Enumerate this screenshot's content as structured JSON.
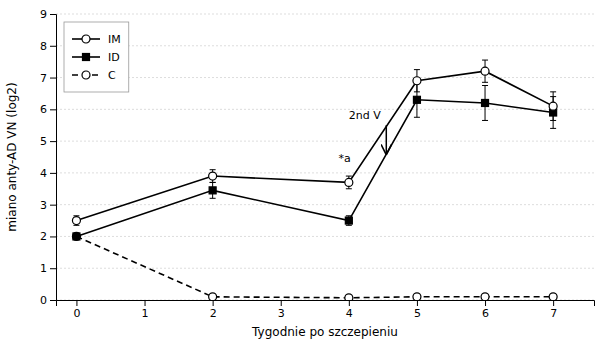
{
  "chart_data": {
    "type": "line",
    "x_label": "Tygodnie po szczepieniu",
    "y_label": "miano anty-AD VN (log2)",
    "x": [
      0,
      2,
      4,
      5,
      6,
      7
    ],
    "series": [
      {
        "name": "IM",
        "color": "#000000",
        "marker": "circle-open",
        "line_style": "solid",
        "values": [
          2.5,
          3.9,
          3.7,
          6.9,
          7.2,
          6.1
        ],
        "errors": [
          0.15,
          0.2,
          0.2,
          0.35,
          0.35,
          0.45
        ]
      },
      {
        "name": "ID",
        "color": "#000000",
        "marker": "square",
        "line_style": "solid",
        "values": [
          2.0,
          3.45,
          2.5,
          6.3,
          6.2,
          5.9
        ],
        "errors": [
          0.1,
          0.25,
          0.15,
          0.55,
          0.55,
          0.5
        ]
      },
      {
        "name": "C",
        "color": "#000000",
        "marker": "circle-open",
        "line_style": "dashed",
        "values": [
          2.0,
          0.1,
          0.07,
          0.1,
          0.1,
          0.1
        ],
        "errors": [
          0.0,
          0.0,
          0.0,
          0.0,
          0.0,
          0.0
        ]
      }
    ],
    "xlim": [
      -0.3,
      7.6
    ],
    "ylim": [
      0,
      9
    ],
    "xticks": [
      0,
      1,
      2,
      3,
      4,
      5,
      6,
      7
    ],
    "yticks": [
      0,
      1,
      2,
      3,
      4,
      5,
      6,
      7,
      8,
      9
    ],
    "grid": "y",
    "legend": "upper-left",
    "annotations": [
      {
        "text": "2nd V",
        "x": 4.0,
        "y": 5.6
      },
      {
        "text": "*a",
        "x": 3.85,
        "y": 4.25
      },
      {
        "arrow": true,
        "x": 4.55,
        "y": 4.6,
        "from_y": 5.5
      }
    ]
  }
}
